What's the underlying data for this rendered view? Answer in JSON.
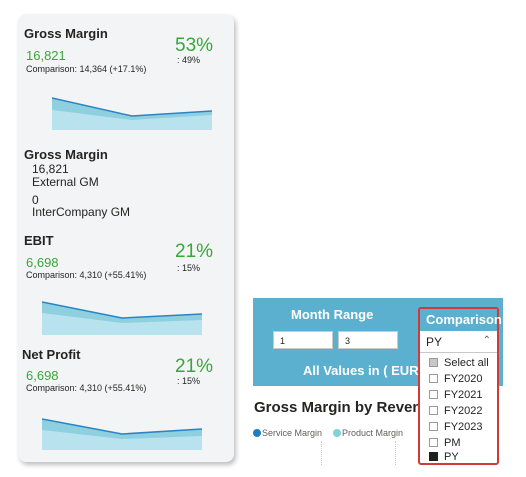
{
  "cards": {
    "gross_margin_kpi": {
      "title": "Gross Margin",
      "value": "16,821",
      "comparison": "Comparison: 14,364 (+17.1%)",
      "percent": "53%",
      "sub_percent": ": 49%"
    },
    "gross_margin_breakdown": {
      "title": "Gross Margin",
      "external_value": "16,821",
      "external_label": "External GM",
      "intercompany_value": "0",
      "intercompany_label": "InterCompany GM"
    },
    "ebit": {
      "title": "EBIT",
      "value": "6,698",
      "comparison": "Comparison: 4,310 (+55.41%)",
      "percent": "21%",
      "sub_percent": ": 15%"
    },
    "net_profit": {
      "title": "Net Profit",
      "value": "6,698",
      "comparison": "Comparison: 4,310 (+55.41%)",
      "percent": "21%",
      "sub_percent": ": 15%"
    }
  },
  "report": {
    "month_range_label": "Month Range",
    "month_from": "1",
    "month_to": "3",
    "all_values_label": "All Values in ( EUR",
    "chart_title": "Gross Margin by Reven",
    "legend": [
      {
        "label": "Service Margin",
        "color": "#1f7ec2"
      },
      {
        "label": "Product Margin",
        "color": "#7fd3d8"
      }
    ]
  },
  "comparison_dropdown": {
    "header": "Comparison",
    "selected": "PY",
    "chevron": "chevron-up-icon",
    "options": [
      {
        "label": "Select all",
        "state": "partial"
      },
      {
        "label": "FY2020",
        "state": "unchecked"
      },
      {
        "label": "FY2021",
        "state": "unchecked"
      },
      {
        "label": "FY2022",
        "state": "unchecked"
      },
      {
        "label": "FY2023",
        "state": "unchecked"
      },
      {
        "label": "PM",
        "state": "unchecked"
      },
      {
        "label": "PY",
        "state": "checked"
      }
    ]
  },
  "colors": {
    "positive": "#3aa63a",
    "banner": "#5bb0cf",
    "spark_line": "#2a84c4",
    "spark_fill": "#8fd0e0",
    "highlight_border": "#d23a3a"
  }
}
